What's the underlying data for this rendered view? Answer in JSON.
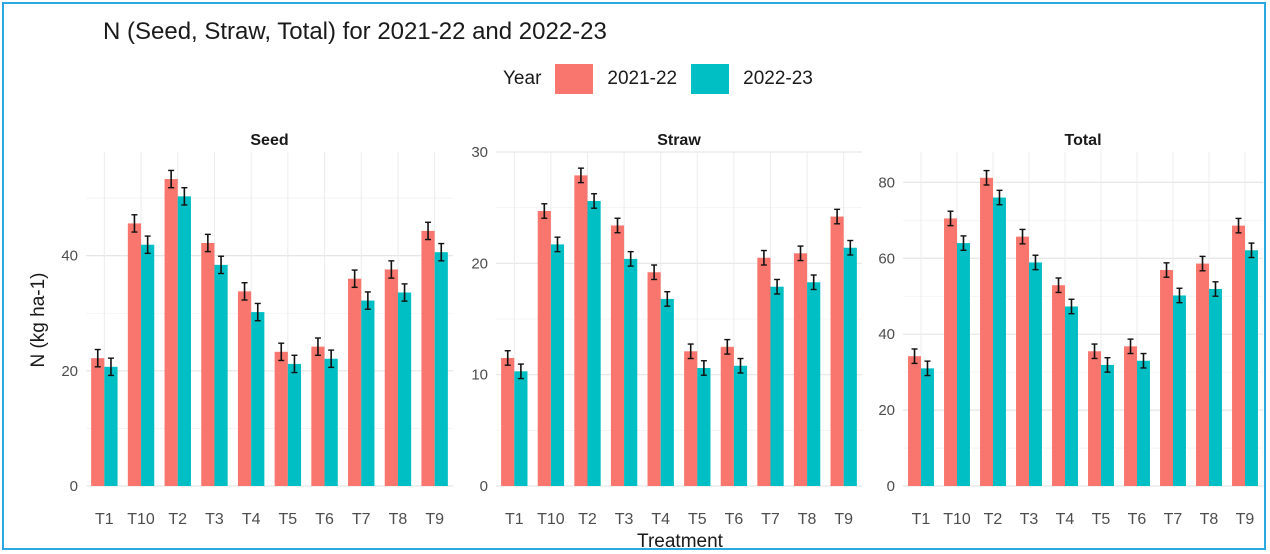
{
  "chart_data": {
    "type": "bar",
    "title": "N (Seed, Straw, Total) for 2021-22 and 2022-23",
    "legend": {
      "title": "Year",
      "position": "top"
    },
    "xlabel": "Treatment",
    "ylabel": "N (kg ha-1)",
    "categories": [
      "T1",
      "T10",
      "T2",
      "T3",
      "T4",
      "T5",
      "T6",
      "T7",
      "T8",
      "T9"
    ],
    "colors": {
      "2021-22": "#f8766d",
      "2022-23": "#00bfc4"
    },
    "grid": true,
    "facets": [
      {
        "name": "Seed",
        "ylim": [
          0,
          58
        ],
        "yticks": [
          0,
          20,
          40
        ],
        "series": [
          {
            "name": "2021-22",
            "values": [
              22.2,
              45.6,
              53.3,
              42.2,
              33.8,
              23.3,
              24.2,
              36.0,
              37.6,
              44.3
            ],
            "errors": [
              1.5,
              1.5,
              1.5,
              1.5,
              1.5,
              1.5,
              1.5,
              1.5,
              1.5,
              1.5
            ]
          },
          {
            "name": "2022-23",
            "values": [
              20.7,
              41.9,
              50.3,
              38.4,
              30.2,
              21.2,
              22.1,
              32.2,
              33.6,
              40.6
            ],
            "errors": [
              1.5,
              1.5,
              1.5,
              1.5,
              1.5,
              1.5,
              1.5,
              1.5,
              1.5,
              1.5
            ]
          }
        ]
      },
      {
        "name": "Straw",
        "ylim": [
          0,
          30
        ],
        "yticks": [
          0,
          10,
          20,
          30
        ],
        "series": [
          {
            "name": "2021-22",
            "values": [
              11.5,
              24.7,
              27.9,
              23.4,
              19.2,
              12.1,
              12.5,
              20.5,
              20.9,
              24.2
            ],
            "errors": [
              0.65,
              0.65,
              0.65,
              0.65,
              0.65,
              0.65,
              0.65,
              0.65,
              0.65,
              0.65
            ]
          },
          {
            "name": "2022-23",
            "values": [
              10.3,
              21.7,
              25.6,
              20.4,
              16.8,
              10.6,
              10.8,
              17.9,
              18.3,
              21.4
            ],
            "errors": [
              0.65,
              0.65,
              0.65,
              0.65,
              0.65,
              0.65,
              0.65,
              0.65,
              0.65,
              0.65
            ]
          }
        ]
      },
      {
        "name": "Total",
        "ylim": [
          0,
          88
        ],
        "yticks": [
          0,
          20,
          40,
          60,
          80
        ],
        "series": [
          {
            "name": "2021-22",
            "values": [
              34.2,
              70.5,
              81.2,
              65.7,
              52.9,
              35.5,
              36.8,
              56.9,
              58.6,
              68.6
            ],
            "errors": [
              1.9,
              1.9,
              1.9,
              1.9,
              1.9,
              1.9,
              1.9,
              1.9,
              1.9,
              1.9
            ]
          },
          {
            "name": "2022-23",
            "values": [
              31.0,
              64.0,
              76.0,
              58.9,
              47.3,
              31.9,
              33.0,
              50.2,
              51.9,
              62.1
            ],
            "errors": [
              1.9,
              1.9,
              1.9,
              1.9,
              1.9,
              1.9,
              1.9,
              1.9,
              1.9,
              1.9
            ]
          }
        ]
      }
    ]
  }
}
